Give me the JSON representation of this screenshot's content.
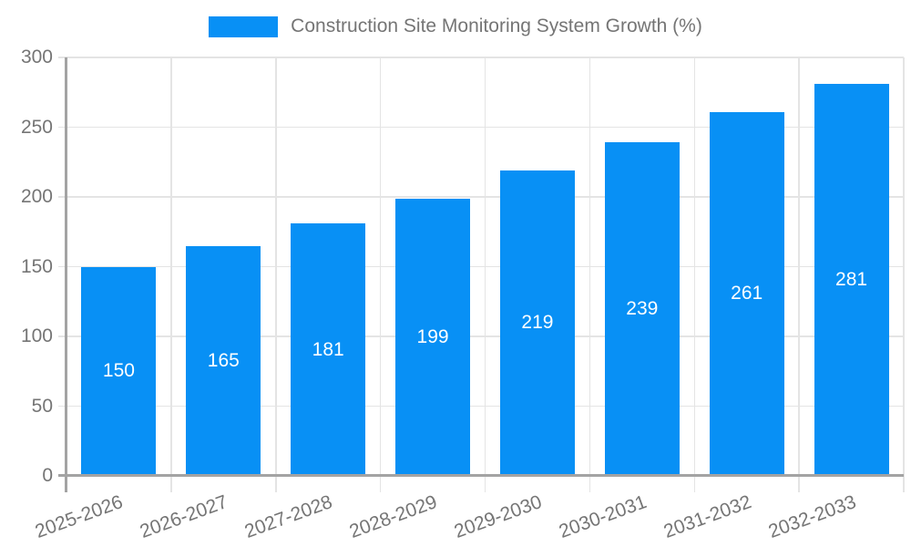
{
  "legend": {
    "label": "Construction Site Monitoring System Growth (%)"
  },
  "chart_data": {
    "type": "bar",
    "title": "Construction Site Monitoring System Growth (%)",
    "categories": [
      "2025-2026",
      "2026-2027",
      "2027-2028",
      "2028-2029",
      "2029-2030",
      "2030-2031",
      "2031-2032",
      "2032-2033"
    ],
    "series": [
      {
        "name": "Construction Site Monitoring System Growth (%)",
        "values": [
          150,
          165,
          181,
          199,
          219,
          239,
          261,
          281
        ]
      }
    ],
    "value_labels": [
      150,
      165,
      181,
      199,
      219,
      239,
      261,
      281
    ],
    "value_label_position": "inside-center",
    "xlabel": "",
    "ylabel": "",
    "ylim": [
      0,
      300
    ],
    "yticks": [
      0,
      50,
      100,
      150,
      200,
      250,
      300
    ],
    "grid": true,
    "legend_position": "top-center",
    "x_label_rotation_deg": -20,
    "colors": {
      "bar": "#0890f5",
      "value_label": "#ffffff",
      "text": "#757575",
      "axis": "#a3a3a3",
      "grid": "#e4e4e4"
    }
  }
}
